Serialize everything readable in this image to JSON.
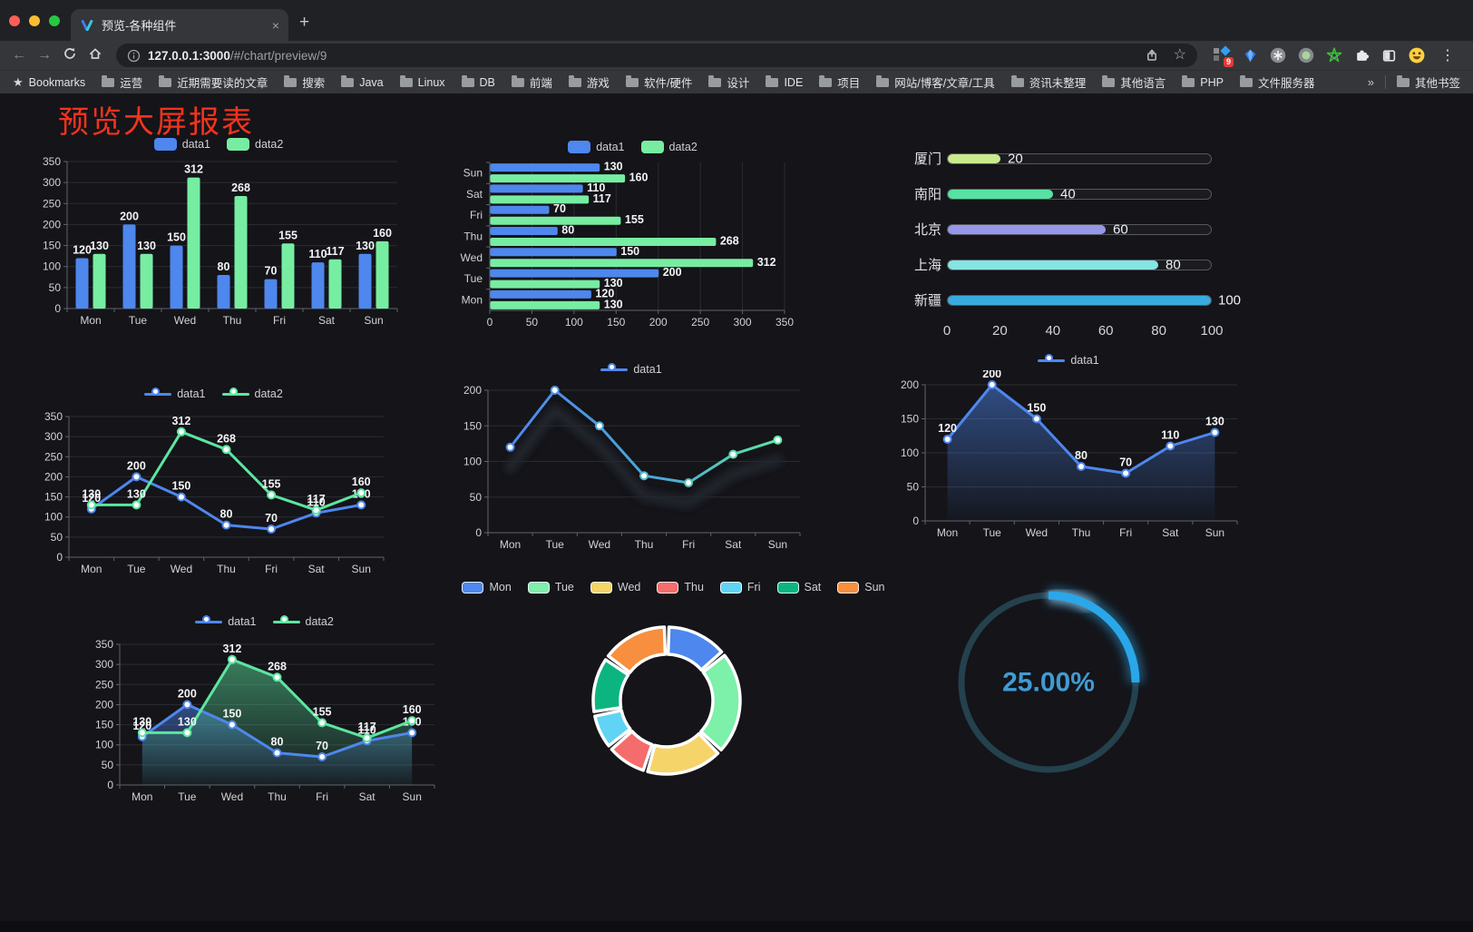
{
  "window": {
    "tab_title": "预览-各种组件",
    "url_host": "127.0.0.1:3000",
    "url_path": "/#/chart/preview/9",
    "bookmarks_label": "Bookmarks",
    "bookmarks": [
      "运营",
      "近期需要读的文章",
      "搜索",
      "Java",
      "Linux",
      "DB",
      "前端",
      "游戏",
      "软件/硬件",
      "设计",
      "IDE",
      "项目",
      "网站/博客/文章/工具",
      "资讯未整理",
      "其他语言",
      "PHP",
      "文件服务器"
    ],
    "other_bookmarks": "其他书签",
    "extension_badge": "9",
    "glyphs": {
      "close": "×",
      "plus": "+",
      "back": "←",
      "forward": "→",
      "menu": "⋮",
      "star_outline": "☆",
      "bookmarks_star": "★",
      "overflow": "»"
    }
  },
  "page": {
    "title": "预览大屏报表",
    "title_color": "#f5331c"
  },
  "chart_data": [
    {
      "id": "grouped-bar",
      "type": "bar",
      "categories": [
        "Mon",
        "Tue",
        "Wed",
        "Thu",
        "Fri",
        "Sat",
        "Sun"
      ],
      "series": [
        {
          "name": "data1",
          "color": "#4e87ed",
          "values": [
            120,
            200,
            150,
            80,
            70,
            110,
            130
          ]
        },
        {
          "name": "data2",
          "color": "#77eda2",
          "values": [
            130,
            130,
            312,
            268,
            155,
            117,
            160
          ]
        }
      ],
      "ylim": [
        0,
        350
      ],
      "ytick": 50,
      "legend_position": "top",
      "grid": true
    },
    {
      "id": "horizontal-bar",
      "type": "bar",
      "orientation": "horizontal",
      "categories": [
        "Mon",
        "Tue",
        "Wed",
        "Thu",
        "Fri",
        "Sat",
        "Sun"
      ],
      "series": [
        {
          "name": "data1",
          "color": "#4e87ed",
          "values": [
            120,
            200,
            150,
            80,
            70,
            110,
            130
          ]
        },
        {
          "name": "data2",
          "color": "#77eda2",
          "values": [
            130,
            130,
            312,
            268,
            155,
            117,
            160
          ]
        }
      ],
      "xlim": [
        0,
        350
      ],
      "xtick": 50,
      "legend_position": "top",
      "grid": true
    },
    {
      "id": "progress-bars",
      "type": "bar",
      "subtype": "progress-list",
      "rows": [
        {
          "label": "厦门",
          "value": 20,
          "color": "#c9eb8e"
        },
        {
          "label": "南阳",
          "value": 40,
          "color": "#57e2a3"
        },
        {
          "label": "北京",
          "value": 60,
          "color": "#9697e9"
        },
        {
          "label": "上海",
          "value": 80,
          "color": "#85e5e2"
        },
        {
          "label": "新疆",
          "value": 100,
          "color": "#39abde"
        }
      ],
      "xlim": [
        0,
        100
      ],
      "xticks": [
        0,
        20,
        40,
        60,
        80,
        100
      ]
    },
    {
      "id": "line-two-series",
      "type": "line",
      "categories": [
        "Mon",
        "Tue",
        "Wed",
        "Thu",
        "Fri",
        "Sat",
        "Sun"
      ],
      "series": [
        {
          "name": "data1",
          "color": "#4e87ed",
          "values": [
            120,
            200,
            150,
            80,
            70,
            110,
            130
          ]
        },
        {
          "name": "data2",
          "color": "#5ce6a0",
          "values": [
            130,
            130,
            312,
            268,
            155,
            117,
            160
          ]
        }
      ],
      "ylim": [
        0,
        350
      ],
      "ytick": 50,
      "labels": true,
      "legend_position": "top"
    },
    {
      "id": "line-gradient",
      "type": "line",
      "categories": [
        "Mon",
        "Tue",
        "Wed",
        "Thu",
        "Fri",
        "Sat",
        "Sun"
      ],
      "series": [
        {
          "name": "data1",
          "gradient": [
            "#4e87ed",
            "#5ce6a0"
          ],
          "values": [
            120,
            200,
            150,
            80,
            70,
            110,
            130
          ]
        }
      ],
      "ylim": [
        0,
        200
      ],
      "ytick": 50,
      "labels": false,
      "legend_position": "top"
    },
    {
      "id": "line-area",
      "type": "area",
      "categories": [
        "Mon",
        "Tue",
        "Wed",
        "Thu",
        "Fri",
        "Sat",
        "Sun"
      ],
      "series": [
        {
          "name": "data1",
          "color": "#4e87ed",
          "values": [
            120,
            200,
            150,
            80,
            70,
            110,
            130
          ],
          "area": true
        }
      ],
      "ylim": [
        0,
        200
      ],
      "ytick": 50,
      "labels": true,
      "legend_position": "top"
    },
    {
      "id": "area-two-series",
      "type": "area",
      "categories": [
        "Mon",
        "Tue",
        "Wed",
        "Thu",
        "Fri",
        "Sat",
        "Sun"
      ],
      "series": [
        {
          "name": "data1",
          "color": "#4e87ed",
          "values": [
            120,
            200,
            150,
            80,
            70,
            110,
            130
          ],
          "area": true
        },
        {
          "name": "data2",
          "color": "#5ce6a0",
          "values": [
            130,
            130,
            312,
            268,
            155,
            117,
            160
          ],
          "area": true
        }
      ],
      "ylim": [
        0,
        350
      ],
      "ytick": 50,
      "labels": true,
      "legend_position": "top"
    },
    {
      "id": "donut",
      "type": "pie",
      "categories": [
        "Mon",
        "Tue",
        "Wed",
        "Thu",
        "Fri",
        "Sat",
        "Sun"
      ],
      "values": [
        120,
        200,
        150,
        80,
        70,
        110,
        130
      ],
      "colors": [
        "#4e87ed",
        "#7df0aa",
        "#f5d469",
        "#f56c6c",
        "#61d4f5",
        "#0cb57f",
        "#f78f3f"
      ],
      "inner_radius_ratio": 0.63,
      "legend_position": "top"
    },
    {
      "id": "ring-progress",
      "type": "pie",
      "subtype": "ring-progress",
      "value": 25,
      "label": "25.00%",
      "color": "#2aa7e9",
      "track_color": "#24414d",
      "text_color": "#3f9bd3"
    }
  ]
}
